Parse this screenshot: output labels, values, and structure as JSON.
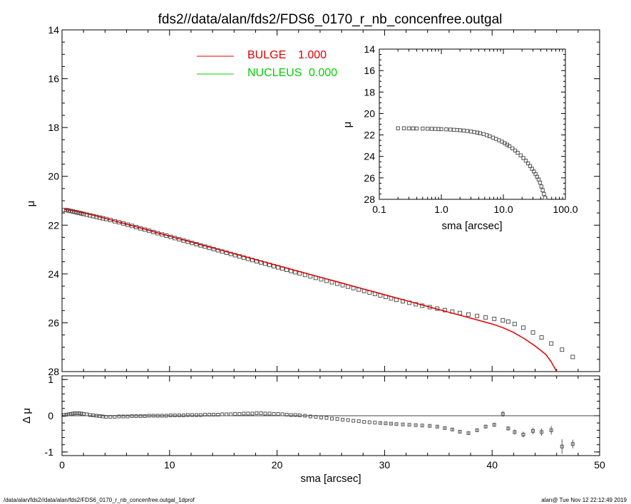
{
  "title": "fds2//data/alan/fds2/FDS6_0170_r_nb_concenfree.outgal",
  "footer_left": "/data/alan/fds2//data/alan/fds2/FDS6_0170_r_nb_concenfree.outgal_1dprof",
  "footer_right": "alan@  Tue Nov 12 22:12:49 2019",
  "colors": {
    "bulge": "#e00000",
    "nucleus": "#00d000",
    "points": "#555555",
    "axes": "#000000"
  },
  "chart_data": [
    {
      "id": "main",
      "type": "scatter",
      "xlabel": "sma [arcsec]",
      "ylabel": "μ",
      "xlim": [
        0,
        50
      ],
      "ylim": [
        28,
        14
      ],
      "y_inverted": true,
      "x_ticks": [
        "0",
        "10",
        "20",
        "30",
        "40",
        "50"
      ],
      "y_ticks": [
        "14",
        "16",
        "18",
        "20",
        "22",
        "24",
        "26",
        "28"
      ],
      "legend": [
        {
          "name": "BULGE",
          "value": "1.000",
          "color": "#e00000"
        },
        {
          "name": "NUCLEUS",
          "value": "0.000",
          "color": "#00d000"
        }
      ],
      "data_points": {
        "x": [
          0.2,
          0.4,
          0.6,
          0.8,
          1.0,
          1.2,
          1.4,
          1.6,
          1.8,
          2.0,
          2.3,
          2.6,
          2.9,
          3.2,
          3.5,
          3.8,
          4.1,
          4.5,
          4.9,
          5.3,
          5.7,
          6.1,
          6.5,
          6.9,
          7.3,
          7.7,
          8.1,
          8.5,
          8.9,
          9.3,
          9.7,
          10.1,
          10.5,
          10.9,
          11.3,
          11.7,
          12.1,
          12.5,
          12.9,
          13.3,
          13.7,
          14.1,
          14.5,
          14.9,
          15.3,
          15.7,
          16.1,
          16.5,
          16.9,
          17.3,
          17.7,
          18.1,
          18.5,
          18.9,
          19.3,
          19.7,
          20.1,
          20.5,
          20.9,
          21.3,
          21.7,
          22.1,
          22.6,
          23.1,
          23.6,
          24.1,
          24.6,
          25.1,
          25.6,
          26.1,
          26.6,
          27.1,
          27.6,
          28.1,
          28.6,
          29.1,
          29.6,
          30.1,
          30.6,
          31.1,
          31.7,
          32.3,
          32.9,
          33.5,
          34.2,
          34.9,
          35.6,
          36.3,
          37.0,
          37.8,
          38.6,
          39.4,
          40.2,
          41.0,
          41.5,
          42.1,
          42.9,
          43.8,
          44.6,
          45.5,
          46.5,
          47.5
        ],
        "y": [
          21.38,
          21.38,
          21.4,
          21.42,
          21.44,
          21.46,
          21.48,
          21.5,
          21.52,
          21.54,
          21.57,
          21.6,
          21.63,
          21.66,
          21.69,
          21.72,
          21.75,
          21.79,
          21.84,
          21.88,
          21.93,
          21.98,
          22.03,
          22.08,
          22.13,
          22.18,
          22.23,
          22.28,
          22.33,
          22.38,
          22.43,
          22.48,
          22.53,
          22.58,
          22.63,
          22.68,
          22.73,
          22.78,
          22.83,
          22.88,
          22.93,
          22.98,
          23.03,
          23.08,
          23.13,
          23.18,
          23.23,
          23.28,
          23.33,
          23.38,
          23.43,
          23.48,
          23.53,
          23.58,
          23.63,
          23.68,
          23.73,
          23.78,
          23.83,
          23.88,
          23.93,
          23.98,
          24.04,
          24.1,
          24.16,
          24.22,
          24.28,
          24.34,
          24.4,
          24.46,
          24.52,
          24.58,
          24.64,
          24.7,
          24.76,
          24.82,
          24.88,
          24.94,
          25.0,
          25.06,
          25.12,
          25.18,
          25.24,
          25.3,
          25.36,
          25.42,
          25.48,
          25.54,
          25.6,
          25.66,
          25.72,
          25.78,
          25.84,
          25.9,
          25.95,
          26.05,
          26.2,
          26.4,
          26.6,
          26.85,
          27.1,
          27.4
        ]
      },
      "bulge_model": {
        "x": [
          0.2,
          1,
          2,
          3,
          4,
          5,
          6,
          7,
          8,
          9,
          10,
          11,
          12,
          13,
          14,
          15,
          16,
          17,
          18,
          19,
          20,
          21,
          22,
          23,
          24,
          25,
          26,
          27,
          28,
          29,
          30,
          31,
          32,
          33,
          34,
          35,
          36,
          37,
          38,
          39,
          40,
          41,
          42,
          43,
          44,
          45,
          45.5,
          46
        ],
        "y": [
          21.35,
          21.4,
          21.5,
          21.6,
          21.72,
          21.84,
          21.96,
          22.08,
          22.2,
          22.33,
          22.45,
          22.57,
          22.69,
          22.81,
          22.93,
          23.05,
          23.17,
          23.29,
          23.41,
          23.53,
          23.65,
          23.77,
          23.89,
          24.01,
          24.13,
          24.25,
          24.37,
          24.49,
          24.61,
          24.73,
          24.85,
          24.97,
          25.09,
          25.21,
          25.33,
          25.45,
          25.57,
          25.69,
          25.81,
          25.93,
          26.05,
          26.2,
          26.4,
          26.65,
          26.95,
          27.3,
          27.6,
          28.0
        ]
      }
    },
    {
      "id": "residual",
      "type": "scatter",
      "xlabel": "sma [arcsec]",
      "ylabel": "Δ μ",
      "xlim": [
        0,
        50
      ],
      "ylim": [
        -1.1,
        1.1
      ],
      "x_ticks": [
        "0",
        "10",
        "20",
        "30",
        "40",
        "50"
      ],
      "y_ticks": [
        "1",
        "0",
        "-1"
      ],
      "data_points": {
        "x": [
          0.2,
          0.4,
          0.6,
          0.8,
          1.0,
          1.2,
          1.4,
          1.6,
          1.8,
          2.0,
          2.3,
          2.6,
          2.9,
          3.2,
          3.5,
          3.8,
          4.1,
          4.5,
          4.9,
          5.3,
          5.7,
          6.1,
          6.5,
          6.9,
          7.3,
          7.7,
          8.1,
          8.5,
          8.9,
          9.3,
          9.7,
          10.1,
          10.5,
          10.9,
          11.3,
          11.7,
          12.1,
          12.5,
          12.9,
          13.3,
          13.7,
          14.1,
          14.5,
          14.9,
          15.3,
          15.7,
          16.1,
          16.5,
          16.9,
          17.3,
          17.7,
          18.1,
          18.5,
          18.9,
          19.3,
          19.7,
          20.1,
          20.5,
          20.9,
          21.3,
          21.7,
          22.1,
          22.6,
          23.1,
          23.6,
          24.1,
          24.6,
          25.1,
          25.6,
          26.1,
          26.6,
          27.1,
          27.6,
          28.1,
          28.6,
          29.1,
          29.6,
          30.1,
          30.6,
          31.1,
          31.7,
          32.3,
          32.9,
          33.5,
          34.2,
          34.9,
          35.6,
          36.3,
          37.0,
          37.8,
          38.6,
          39.4,
          40.2,
          41.0,
          41.5,
          42.1,
          42.9,
          43.8,
          44.6,
          45.5,
          46.5,
          47.5
        ],
        "y": [
          0.02,
          0.03,
          0.04,
          0.05,
          0.06,
          0.07,
          0.07,
          0.07,
          0.06,
          0.05,
          0.04,
          0.02,
          0.01,
          0.0,
          -0.01,
          -0.02,
          -0.03,
          -0.03,
          -0.03,
          -0.02,
          -0.02,
          -0.02,
          -0.01,
          -0.01,
          -0.01,
          -0.01,
          0.0,
          0.0,
          0.0,
          0.0,
          0.0,
          0.01,
          0.01,
          0.01,
          0.01,
          0.02,
          0.02,
          0.02,
          0.02,
          0.03,
          0.03,
          0.03,
          0.03,
          0.04,
          0.04,
          0.04,
          0.05,
          0.05,
          0.06,
          0.06,
          0.06,
          0.07,
          0.07,
          0.06,
          0.06,
          0.05,
          0.05,
          0.04,
          0.03,
          0.02,
          0.02,
          0.01,
          0.0,
          -0.02,
          -0.03,
          -0.05,
          -0.06,
          -0.08,
          -0.09,
          -0.11,
          -0.12,
          -0.14,
          -0.15,
          -0.17,
          -0.18,
          -0.19,
          -0.2,
          -0.21,
          -0.22,
          -0.23,
          -0.24,
          -0.25,
          -0.26,
          -0.27,
          -0.28,
          -0.3,
          -0.34,
          -0.38,
          -0.44,
          -0.48,
          -0.4,
          -0.3,
          -0.25,
          0.05,
          -0.35,
          -0.45,
          -0.52,
          -0.42,
          -0.45,
          -0.4,
          -0.85,
          -0.78
        ],
        "err": [
          0.01,
          0.01,
          0.01,
          0.01,
          0.01,
          0.01,
          0.01,
          0.01,
          0.01,
          0.01,
          0.01,
          0.01,
          0.01,
          0.01,
          0.01,
          0.01,
          0.01,
          0.01,
          0.01,
          0.01,
          0.01,
          0.01,
          0.01,
          0.01,
          0.01,
          0.01,
          0.01,
          0.01,
          0.01,
          0.01,
          0.01,
          0.01,
          0.01,
          0.01,
          0.01,
          0.01,
          0.01,
          0.01,
          0.01,
          0.01,
          0.01,
          0.01,
          0.01,
          0.01,
          0.01,
          0.01,
          0.01,
          0.01,
          0.01,
          0.01,
          0.01,
          0.01,
          0.01,
          0.01,
          0.01,
          0.01,
          0.01,
          0.01,
          0.01,
          0.01,
          0.01,
          0.01,
          0.01,
          0.01,
          0.01,
          0.01,
          0.01,
          0.01,
          0.01,
          0.01,
          0.01,
          0.01,
          0.01,
          0.01,
          0.01,
          0.01,
          0.02,
          0.02,
          0.02,
          0.02,
          0.02,
          0.02,
          0.02,
          0.02,
          0.03,
          0.03,
          0.03,
          0.03,
          0.04,
          0.04,
          0.05,
          0.05,
          0.06,
          0.08,
          0.06,
          0.07,
          0.08,
          0.09,
          0.1,
          0.12,
          0.2,
          0.12
        ]
      }
    },
    {
      "id": "inset",
      "type": "scatter",
      "xlabel": "sma [arcsec]",
      "ylabel": "μ",
      "x_scale": "log",
      "xlim": [
        0.1,
        100
      ],
      "ylim": [
        28,
        14
      ],
      "y_inverted": true,
      "x_ticks": [
        "0.1",
        "1.0",
        "10.0",
        "100.0"
      ],
      "y_ticks": [
        "14",
        "16",
        "18",
        "20",
        "22",
        "24",
        "26",
        "28"
      ],
      "data_points": {
        "x": [
          0.2,
          0.25,
          0.3,
          0.35,
          0.4,
          0.5,
          0.6,
          0.7,
          0.8,
          0.9,
          1.0,
          1.2,
          1.4,
          1.6,
          1.8,
          2.0,
          2.3,
          2.6,
          3.0,
          3.4,
          3.8,
          4.2,
          4.8,
          5.4,
          6.0,
          6.8,
          7.6,
          8.5,
          9.5,
          10.5,
          11.5,
          12.5,
          14.0,
          15.5,
          17.0,
          19.0,
          21.0,
          23.0,
          25.0,
          27.0,
          29.0,
          31.0,
          33.0,
          35.0,
          37.0,
          39.0,
          41.0,
          43.0,
          45.0,
          47.0
        ],
        "y": [
          21.38,
          21.38,
          21.39,
          21.39,
          21.4,
          21.41,
          21.42,
          21.43,
          21.44,
          21.45,
          21.46,
          21.48,
          21.5,
          21.52,
          21.54,
          21.56,
          21.59,
          21.63,
          21.68,
          21.73,
          21.78,
          21.84,
          21.92,
          22.02,
          22.12,
          22.25,
          22.37,
          22.5,
          22.63,
          22.77,
          22.91,
          23.05,
          23.25,
          23.45,
          23.66,
          23.9,
          24.15,
          24.4,
          24.65,
          24.9,
          25.15,
          25.4,
          25.65,
          25.9,
          26.15,
          26.45,
          26.8,
          27.15,
          27.5,
          27.85
        ]
      }
    }
  ]
}
